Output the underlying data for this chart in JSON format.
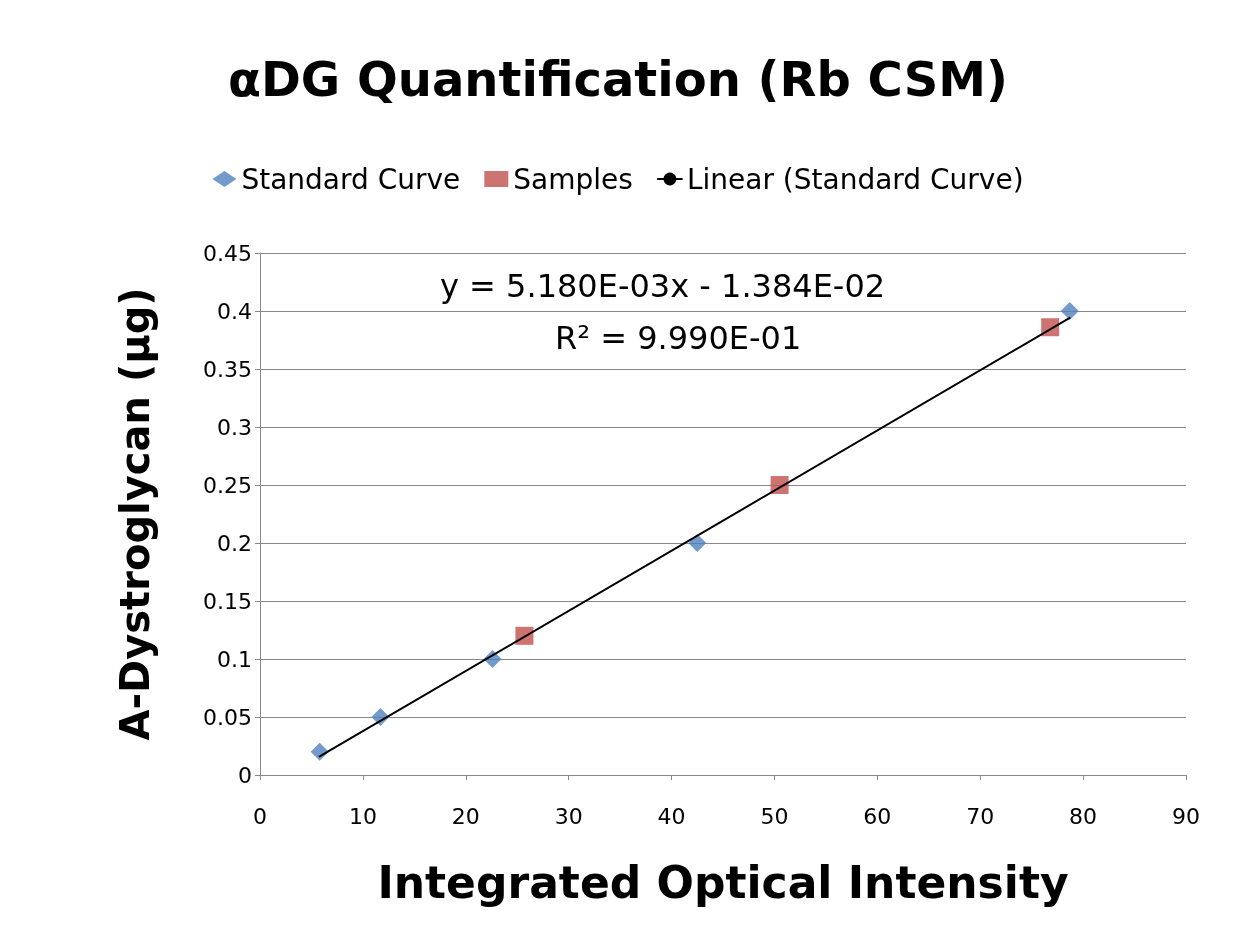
{
  "chart_data": {
    "type": "scatter",
    "title": "αDG Quantification (Rb CSM)",
    "xlabel": "Integrated Optical Intensity",
    "ylabel": "A-Dystroglycan (µg)",
    "xlim": [
      0,
      90
    ],
    "xticks": [
      0,
      10,
      20,
      30,
      40,
      50,
      60,
      70,
      80,
      90
    ],
    "ylim": [
      0,
      0.45
    ],
    "yticks": [
      0,
      0.05,
      0.1,
      0.15,
      0.2,
      0.25,
      0.3,
      0.35,
      0.4,
      0.45
    ],
    "grid": "y",
    "legend": "top",
    "annotations": [
      "y = 5.180E-03x - 1.384E-02",
      "R² = 9.990E-01"
    ],
    "series": [
      {
        "name": "Standard Curve",
        "type": "scatter",
        "marker": "diamond",
        "color": "#4f81bd",
        "x": [
          5.8,
          11.7,
          22.6,
          42.5,
          78.7
        ],
        "values": [
          0.02,
          0.05,
          0.1,
          0.2,
          0.4
        ]
      },
      {
        "name": "Samples",
        "type": "scatter",
        "marker": "square",
        "color": "#c0504d",
        "x": [
          25.7,
          50.5,
          76.8
        ],
        "values": [
          0.12,
          0.25,
          0.386
        ]
      },
      {
        "name": "Linear (Standard Curve)",
        "type": "line",
        "marker": "none",
        "line_style": "solid",
        "color": "#000000",
        "x": [
          5.8,
          78.7
        ],
        "values": [
          0.016,
          0.394
        ]
      }
    ]
  }
}
